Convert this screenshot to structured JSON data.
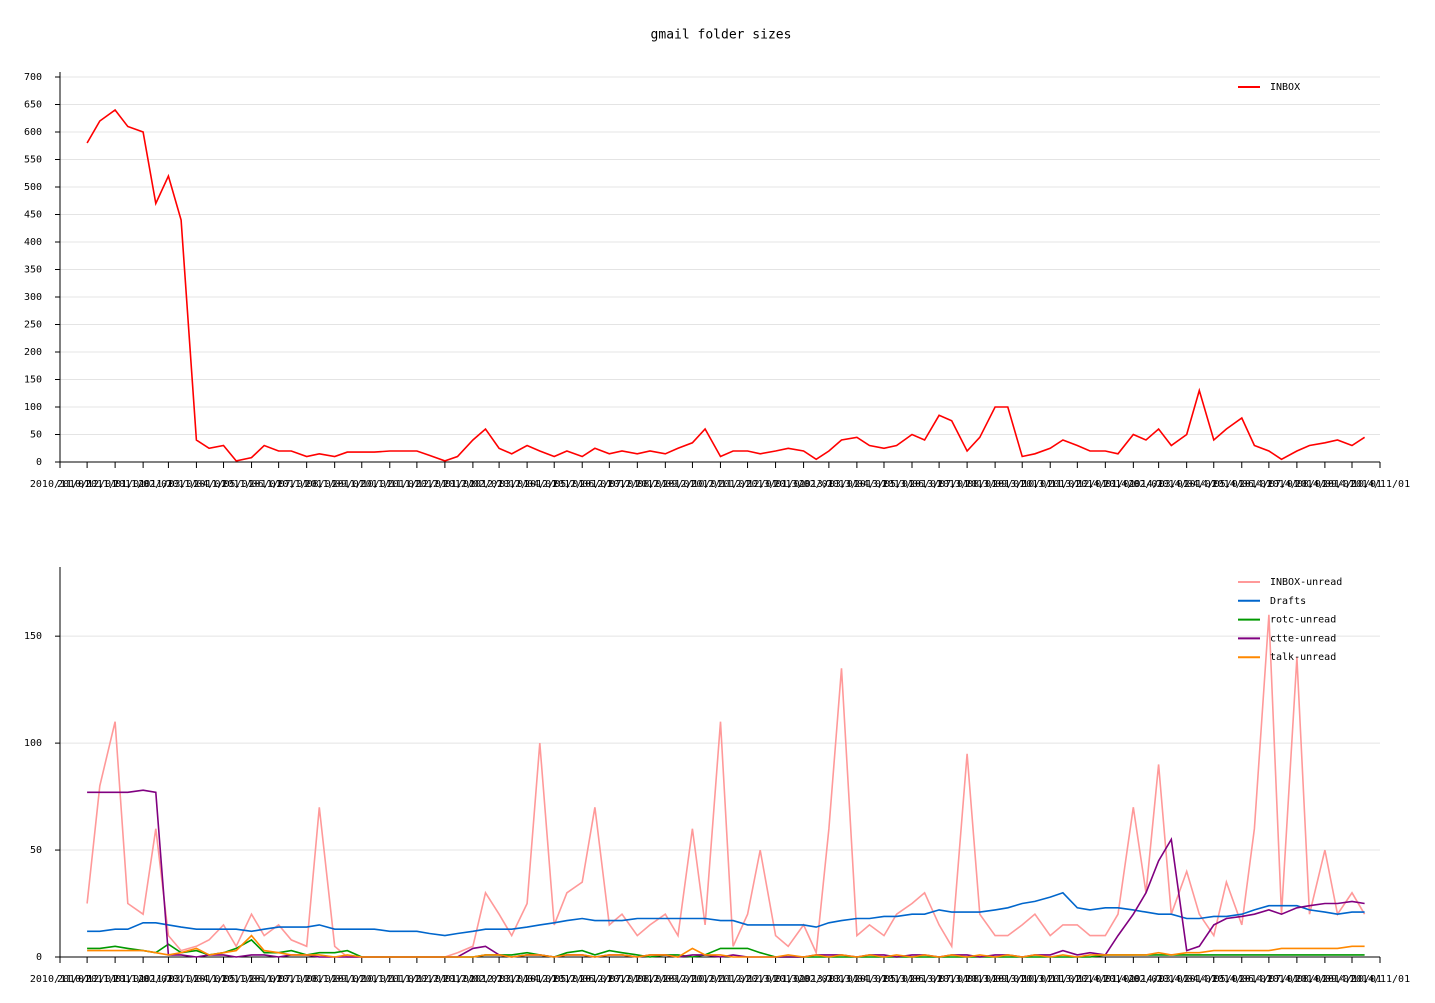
{
  "chart_data": [
    {
      "type": "line",
      "title": "gmail folder sizes",
      "x": [
        "2010/12/01",
        "2010/12/15",
        "2011/01/01",
        "2011/01/15",
        "2011/02/01",
        "2011/02/15",
        "2011/03/01",
        "2011/03/15",
        "2011/04/01",
        "2011/04/15",
        "2011/05/01",
        "2011/05/15",
        "2011/06/01",
        "2011/06/15",
        "2011/07/01",
        "2011/07/15",
        "2011/08/01",
        "2011/08/15",
        "2011/09/01",
        "2011/09/15",
        "2011/10/01",
        "2011/10/15",
        "2011/11/01",
        "2011/11/15",
        "2011/12/01",
        "2011/12/15",
        "2012/01/01",
        "2012/01/15",
        "2012/02/01",
        "2012/02/15",
        "2012/03/01",
        "2012/03/15",
        "2012/04/01",
        "2012/04/15",
        "2012/05/01",
        "2012/05/15",
        "2012/06/01",
        "2012/06/15",
        "2012/07/01",
        "2012/07/15",
        "2012/08/01",
        "2012/08/15",
        "2012/09/01",
        "2012/09/15",
        "2012/10/01",
        "2012/10/15",
        "2012/11/01",
        "2012/11/15",
        "2012/12/01",
        "2012/12/15",
        "2013/01/01",
        "2013/01/15",
        "2013/02/01",
        "2013/02/15",
        "2013/03/01",
        "2013/03/15",
        "2013/04/01",
        "2013/04/15",
        "2013/05/01",
        "2013/05/15",
        "2013/06/01",
        "2013/06/15",
        "2013/07/01",
        "2013/07/15",
        "2013/08/01",
        "2013/08/15",
        "2013/09/01",
        "2013/09/15",
        "2013/10/01",
        "2013/10/15",
        "2013/11/01",
        "2013/11/15",
        "2013/12/01",
        "2013/12/15",
        "2014/01/01",
        "2014/01/15",
        "2014/02/01",
        "2014/02/15",
        "2014/03/01",
        "2014/03/15",
        "2014/04/01",
        "2014/04/15",
        "2014/05/01",
        "2014/05/15",
        "2014/06/01",
        "2014/06/15",
        "2014/07/01",
        "2014/07/15",
        "2014/08/01",
        "2014/08/15",
        "2014/09/01",
        "2014/09/15",
        "2014/10/01",
        "2014/10/15"
      ],
      "series": [
        {
          "name": "INBOX",
          "color": "#ff0000",
          "values": [
            580,
            620,
            640,
            610,
            600,
            470,
            520,
            440,
            40,
            25,
            30,
            2,
            8,
            30,
            20,
            20,
            10,
            15,
            10,
            18,
            18,
            18,
            20,
            20,
            20,
            12,
            2,
            10,
            40,
            60,
            25,
            15,
            30,
            20,
            10,
            20,
            10,
            25,
            15,
            20,
            15,
            20,
            15,
            25,
            35,
            60,
            10,
            20,
            20,
            15,
            20,
            25,
            20,
            5,
            20,
            40,
            45,
            30,
            25,
            30,
            50,
            40,
            85,
            75,
            20,
            45,
            100,
            100,
            10,
            15,
            25,
            40,
            30,
            20,
            20,
            15,
            50,
            40,
            60,
            30,
            50,
            130,
            40,
            60,
            80,
            30,
            20,
            5,
            20,
            30,
            35,
            40,
            30,
            45
          ]
        }
      ],
      "xlim": [
        "2010/11/01",
        "2014/11/01"
      ],
      "xticks": [
        "2010/11/01",
        "2010/12/01",
        "2011/01/01",
        "2011/02/01",
        "2011/03/01",
        "2011/04/01",
        "2011/05/01",
        "2011/06/01",
        "2011/07/01",
        "2011/08/01",
        "2011/09/01",
        "2011/10/01",
        "2011/11/01",
        "2011/12/01",
        "2012/01/01",
        "2012/02/01",
        "2012/03/01",
        "2012/04/01",
        "2012/05/01",
        "2012/06/01",
        "2012/07/01",
        "2012/08/01",
        "2012/09/01",
        "2012/10/01",
        "2012/11/01",
        "2012/12/01",
        "2013/01/01",
        "2013/02/01",
        "2013/03/01",
        "2013/04/01",
        "2013/05/01",
        "2013/06/01",
        "2013/07/01",
        "2013/08/01",
        "2013/09/01",
        "2013/10/01",
        "2013/11/01",
        "2013/12/01",
        "2014/01/01",
        "2014/02/01",
        "2014/03/01",
        "2014/04/01",
        "2014/05/01",
        "2014/06/01",
        "2014/07/01",
        "2014/08/01",
        "2014/09/01",
        "2014/10/01",
        "2014/11/01"
      ],
      "ylim": [
        0,
        700
      ],
      "yticks": [
        0,
        50,
        100,
        150,
        200,
        250,
        300,
        350,
        400,
        450,
        500,
        550,
        600,
        650,
        700
      ],
      "grid": true,
      "legend": "upper-right"
    },
    {
      "type": "line",
      "x": [
        "2010/12/01",
        "2010/12/15",
        "2011/01/01",
        "2011/01/15",
        "2011/02/01",
        "2011/02/15",
        "2011/03/01",
        "2011/03/15",
        "2011/04/01",
        "2011/04/15",
        "2011/05/01",
        "2011/05/15",
        "2011/06/01",
        "2011/06/15",
        "2011/07/01",
        "2011/07/15",
        "2011/08/01",
        "2011/08/15",
        "2011/09/01",
        "2011/09/15",
        "2011/10/01",
        "2011/10/15",
        "2011/11/01",
        "2011/11/15",
        "2011/12/01",
        "2011/12/15",
        "2012/01/01",
        "2012/01/15",
        "2012/02/01",
        "2012/02/15",
        "2012/03/01",
        "2012/03/15",
        "2012/04/01",
        "2012/04/15",
        "2012/05/01",
        "2012/05/15",
        "2012/06/01",
        "2012/06/15",
        "2012/07/01",
        "2012/07/15",
        "2012/08/01",
        "2012/08/15",
        "2012/09/01",
        "2012/09/15",
        "2012/10/01",
        "2012/10/15",
        "2012/11/01",
        "2012/11/15",
        "2012/12/01",
        "2012/12/15",
        "2013/01/01",
        "2013/01/15",
        "2013/02/01",
        "2013/02/15",
        "2013/03/01",
        "2013/03/15",
        "2013/04/01",
        "2013/04/15",
        "2013/05/01",
        "2013/05/15",
        "2013/06/01",
        "2013/06/15",
        "2013/07/01",
        "2013/07/15",
        "2013/08/01",
        "2013/08/15",
        "2013/09/01",
        "2013/09/15",
        "2013/10/01",
        "2013/10/15",
        "2013/11/01",
        "2013/11/15",
        "2013/12/01",
        "2013/12/15",
        "2014/01/01",
        "2014/01/15",
        "2014/02/01",
        "2014/02/15",
        "2014/03/01",
        "2014/03/15",
        "2014/04/01",
        "2014/04/15",
        "2014/05/01",
        "2014/05/15",
        "2014/06/01",
        "2014/06/15",
        "2014/07/01",
        "2014/07/15",
        "2014/08/01",
        "2014/08/15",
        "2014/09/01",
        "2014/09/15",
        "2014/10/01",
        "2014/10/15"
      ],
      "series": [
        {
          "name": "INBOX-unread",
          "color": "#ff9999",
          "values": [
            25,
            80,
            110,
            25,
            20,
            60,
            10,
            3,
            5,
            8,
            15,
            5,
            20,
            10,
            15,
            8,
            5,
            70,
            5,
            0,
            0,
            0,
            0,
            0,
            0,
            0,
            0,
            2,
            5,
            30,
            20,
            10,
            25,
            100,
            15,
            30,
            35,
            70,
            15,
            20,
            10,
            15,
            20,
            10,
            60,
            15,
            110,
            5,
            20,
            50,
            10,
            5,
            15,
            2,
            60,
            135,
            10,
            15,
            10,
            20,
            25,
            30,
            15,
            5,
            95,
            20,
            10,
            10,
            15,
            20,
            10,
            15,
            15,
            10,
            10,
            20,
            70,
            30,
            90,
            20,
            40,
            20,
            10,
            35,
            15,
            60,
            160,
            20,
            140,
            20,
            50,
            20,
            30,
            20
          ]
        },
        {
          "name": "Drafts",
          "color": "#0066cc",
          "values": [
            12,
            12,
            13,
            13,
            16,
            16,
            15,
            14,
            13,
            13,
            13,
            13,
            12,
            13,
            14,
            14,
            14,
            15,
            13,
            13,
            13,
            13,
            12,
            12,
            12,
            11,
            10,
            11,
            12,
            13,
            13,
            13,
            14,
            15,
            16,
            17,
            18,
            17,
            17,
            17,
            18,
            18,
            18,
            18,
            18,
            18,
            17,
            17,
            15,
            15,
            15,
            15,
            15,
            14,
            16,
            17,
            18,
            18,
            19,
            19,
            20,
            20,
            22,
            21,
            21,
            21,
            22,
            23,
            25,
            26,
            28,
            30,
            23,
            22,
            23,
            23,
            22,
            21,
            20,
            20,
            18,
            18,
            19,
            19,
            20,
            22,
            24,
            24,
            24,
            22,
            21,
            20,
            21,
            21
          ]
        },
        {
          "name": "rotc-unread",
          "color": "#009900",
          "values": [
            4,
            4,
            5,
            4,
            3,
            2,
            6,
            2,
            3,
            1,
            2,
            4,
            8,
            2,
            2,
            3,
            1,
            2,
            2,
            3,
            0,
            0,
            0,
            0,
            0,
            0,
            0,
            0,
            0,
            1,
            1,
            1,
            2,
            1,
            0,
            2,
            3,
            1,
            3,
            2,
            1,
            0,
            1,
            1,
            0,
            1,
            4,
            4,
            4,
            2,
            0,
            0,
            0,
            0,
            0,
            0,
            0,
            0,
            0,
            0,
            0,
            0,
            0,
            0,
            0,
            0,
            0,
            0,
            0,
            0,
            0,
            0,
            0,
            0,
            1,
            1,
            1,
            1,
            1,
            1,
            1,
            1,
            1,
            1,
            1,
            1,
            1,
            1,
            1,
            1,
            1,
            1,
            1,
            1
          ]
        },
        {
          "name": "ctte-unread",
          "color": "#800080",
          "values": [
            77,
            77,
            77,
            77,
            78,
            77,
            1,
            1,
            0,
            1,
            1,
            0,
            1,
            1,
            0,
            1,
            1,
            0,
            0,
            0,
            0,
            0,
            0,
            0,
            0,
            0,
            0,
            0,
            4,
            5,
            1,
            0,
            1,
            1,
            0,
            1,
            1,
            0,
            1,
            1,
            0,
            1,
            1,
            0,
            1,
            1,
            0,
            1,
            0,
            0,
            0,
            0,
            0,
            1,
            1,
            1,
            0,
            1,
            1,
            0,
            1,
            1,
            0,
            1,
            1,
            0,
            1,
            1,
            0,
            1,
            1,
            3,
            1,
            2,
            1,
            10,
            20,
            30,
            45,
            55,
            3,
            5,
            15,
            18,
            19,
            20,
            22,
            20,
            23,
            24,
            25,
            25,
            26,
            25
          ]
        },
        {
          "name": "talk-unread",
          "color": "#ff8800",
          "values": [
            3,
            3,
            3,
            3,
            3,
            2,
            1,
            2,
            4,
            1,
            2,
            3,
            10,
            3,
            2,
            1,
            1,
            1,
            0,
            1,
            0,
            0,
            0,
            0,
            0,
            0,
            0,
            0,
            0,
            1,
            1,
            0,
            1,
            1,
            0,
            1,
            1,
            0,
            1,
            1,
            0,
            1,
            1,
            0,
            4,
            1,
            1,
            0,
            0,
            0,
            0,
            1,
            0,
            1,
            0,
            1,
            0,
            1,
            0,
            1,
            0,
            1,
            0,
            1,
            0,
            1,
            0,
            1,
            0,
            1,
            0,
            1,
            0,
            1,
            1,
            1,
            1,
            1,
            2,
            1,
            2,
            2,
            3,
            3,
            3,
            3,
            3,
            4,
            4,
            4,
            4,
            4,
            5,
            5
          ]
        }
      ],
      "xlim": [
        "2010/11/01",
        "2014/11/01"
      ],
      "xticks": [
        "2010/11/01",
        "2010/12/01",
        "2011/01/01",
        "2011/02/01",
        "2011/03/01",
        "2011/04/01",
        "2011/05/01",
        "2011/06/01",
        "2011/07/01",
        "2011/08/01",
        "2011/09/01",
        "2011/10/01",
        "2011/11/01",
        "2011/12/01",
        "2012/01/01",
        "2012/02/01",
        "2012/03/01",
        "2012/04/01",
        "2012/05/01",
        "2012/06/01",
        "2012/07/01",
        "2012/08/01",
        "2012/09/01",
        "2012/10/01",
        "2012/11/01",
        "2012/12/01",
        "2013/01/01",
        "2013/02/01",
        "2013/03/01",
        "2013/04/01",
        "2013/05/01",
        "2013/06/01",
        "2013/07/01",
        "2013/08/01",
        "2013/09/01",
        "2013/10/01",
        "2013/11/01",
        "2013/12/01",
        "2014/01/01",
        "2014/02/01",
        "2014/03/01",
        "2014/04/01",
        "2014/05/01",
        "2014/06/01",
        "2014/07/01",
        "2014/08/01",
        "2014/09/01",
        "2014/10/01",
        "2014/11/01"
      ],
      "ylim": [
        0,
        180
      ],
      "yticks": [
        0,
        50,
        100,
        150
      ],
      "grid": true,
      "legend": "upper-right"
    }
  ]
}
